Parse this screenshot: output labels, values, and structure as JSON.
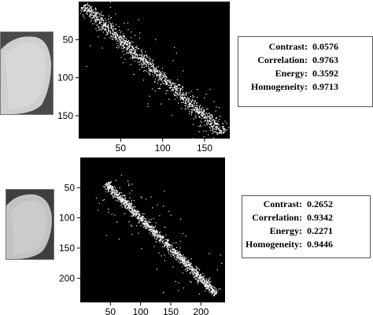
{
  "chart_data": [
    {
      "type": "scatter",
      "title": "",
      "xlabel": "",
      "ylabel": "",
      "background": "#000000",
      "point_color": "#ffffff",
      "y_axis": "reversed",
      "xlim": [
        0,
        180
      ],
      "ylim": [
        0,
        180
      ],
      "xticks": [
        50,
        100,
        150
      ],
      "yticks": [
        50,
        100,
        150
      ],
      "diagonal": {
        "start": 5,
        "end": 172,
        "spread": 7,
        "outlier_spread": 26,
        "count": 1400
      },
      "stats": [
        {
          "label": "Contrast:",
          "value": "0.0576"
        },
        {
          "label": "Correlation:",
          "value": "0.9763"
        },
        {
          "label": "Energy:",
          "value": "0.3592"
        },
        {
          "label": "Homogeneity:",
          "value": "0.9713"
        }
      ]
    },
    {
      "type": "scatter",
      "title": "",
      "xlabel": "",
      "ylabel": "",
      "background": "#000000",
      "point_color": "#ffffff",
      "y_axis": "reversed",
      "xlim": [
        0,
        240
      ],
      "ylim": [
        0,
        240
      ],
      "xticks": [
        50,
        100,
        150,
        200
      ],
      "yticks": [
        50,
        100,
        150,
        200
      ],
      "diagonal": {
        "start": 42,
        "end": 225,
        "spread": 6,
        "outlier_spread": 40,
        "count": 1300
      },
      "stats": [
        {
          "label": "Contrast:",
          "value": "0.2652"
        },
        {
          "label": "Correlation:",
          "value": "0.9342"
        },
        {
          "label": "Energy:",
          "value": "0.2271"
        },
        {
          "label": "Homogeneity:",
          "value": "0.9446"
        }
      ]
    }
  ]
}
